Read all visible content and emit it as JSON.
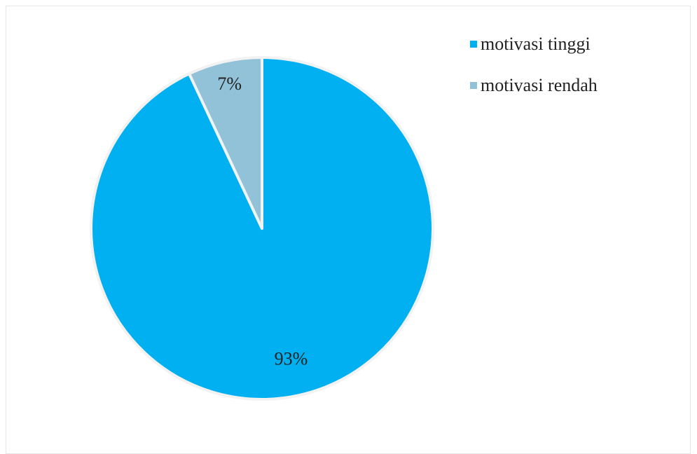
{
  "chart_data": {
    "type": "pie",
    "categories": [
      "motivasi tinggi",
      "motivasi rendah"
    ],
    "values": [
      93,
      7
    ],
    "labels": [
      "93%",
      "7%"
    ],
    "colors": [
      "#00b0f0",
      "#92c2d8"
    ],
    "slice_border_color": "#f2f2f2",
    "start_angle": "12 o'clock, clockwise",
    "legend_placement": "top-right"
  }
}
